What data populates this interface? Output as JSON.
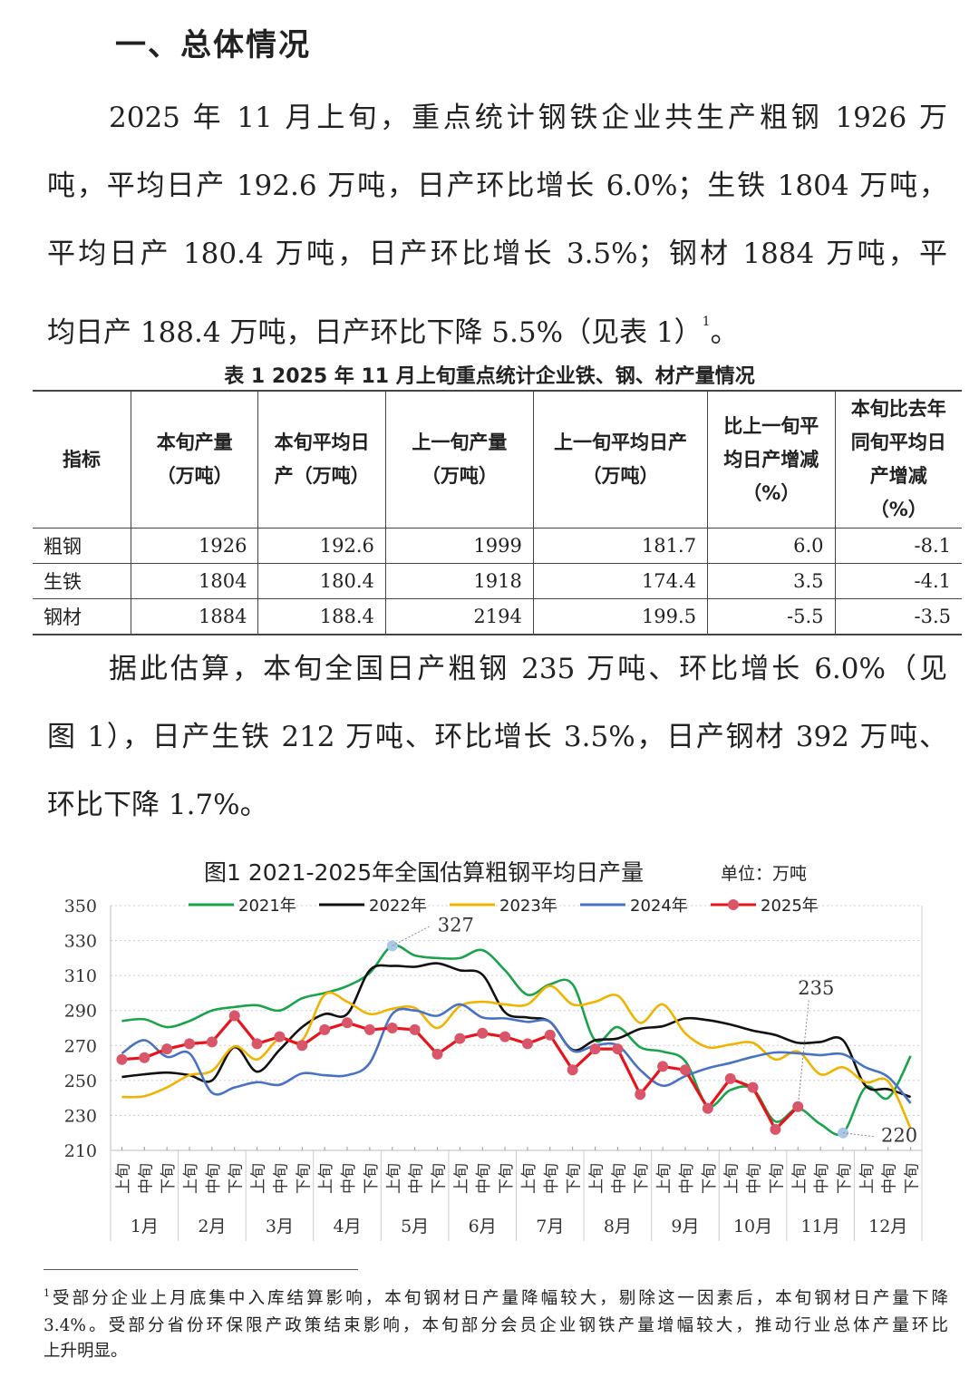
{
  "section_title": "一、总体情况",
  "paragraph1": {
    "lines": [
      "2025 年 11 月上旬，重点统计钢铁企业共生产粗钢 1926 万",
      "吨，平均日产 192.6 万吨，日产环比增长 6.0%；生铁 1804 万吨，",
      "平均日产 180.4 万吨，日产环比增长 3.5%；钢材 1884 万吨，平",
      "均日产 188.4 万吨，日产环比下降 5.5%（见表 1）"
    ],
    "footnote_ref": "1",
    "end": "。"
  },
  "table": {
    "caption": "表 1   2025 年 11 月上旬重点统计企业铁、钢、材产量情况",
    "headers": [
      "指标",
      "本旬产量（万吨）",
      "本旬平均日产（万吨）",
      "上一旬产量（万吨）",
      "上一旬平均日产（万吨）",
      "比上一旬平均日产增减（%）",
      "本旬比去年同旬平均日产增减（%）"
    ],
    "rows": [
      [
        "粗钢",
        "1926",
        "192.6",
        "1999",
        "181.7",
        "6.0",
        "-8.1"
      ],
      [
        "生铁",
        "1804",
        "180.4",
        "1918",
        "174.4",
        "3.5",
        "-4.1"
      ],
      [
        "钢材",
        "1884",
        "188.4",
        "2194",
        "199.5",
        "-5.5",
        "-3.5"
      ]
    ]
  },
  "paragraph2": {
    "lines": [
      "据此估算，本旬全国日产粗钢 235 万吨、环比增长 6.0%（见",
      "图 1），日产生铁 212 万吨、环比增长 3.5%，日产钢材 392 万吨、",
      "环比下降 1.7%。"
    ]
  },
  "chart_data": {
    "type": "line",
    "title": "图1  2021-2025年全国估算粗钢平均日产量",
    "unit": "单位：万吨",
    "ylim": [
      210,
      350
    ],
    "yticks": [
      210,
      230,
      250,
      270,
      290,
      310,
      330,
      350
    ],
    "grid": true,
    "legend": "top",
    "months": [
      "1月",
      "2月",
      "3月",
      "4月",
      "5月",
      "6月",
      "7月",
      "8月",
      "9月",
      "10月",
      "11月",
      "12月"
    ],
    "dekads": [
      "上旬",
      "中旬",
      "下旬"
    ],
    "series": [
      {
        "name": "2021年",
        "color": "#1aa34a",
        "values": [
          284,
          285,
          280.5,
          284,
          290,
          292,
          293,
          290,
          297,
          300,
          304,
          311.5,
          327,
          321.5,
          320,
          320,
          324.5,
          313,
          299,
          305,
          305,
          273,
          280.5,
          269,
          266.5,
          261,
          235.5,
          244.5,
          245,
          226.5,
          234,
          225,
          220,
          246,
          240,
          264
        ]
      },
      {
        "name": "2022年",
        "color": "#111111",
        "values": [
          252,
          253.5,
          254.5,
          253,
          250,
          269,
          255,
          267.5,
          280.5,
          288,
          288,
          313,
          315.5,
          315,
          317,
          313,
          310.5,
          289,
          286,
          283.5,
          267.5,
          273,
          274,
          279.5,
          281,
          285.5,
          284.5,
          282,
          278.5,
          276,
          271.5,
          272,
          273,
          247,
          245,
          240.5
        ]
      },
      {
        "name": "2023年",
        "color": "#f0b400",
        "values": [
          240.5,
          241,
          246,
          253,
          255.5,
          269.5,
          262,
          274,
          273,
          299,
          295,
          288,
          291,
          291.5,
          280,
          292.5,
          295,
          293.5,
          293.5,
          304,
          293.5,
          295,
          298.5,
          283,
          293.5,
          277,
          269,
          270.5,
          271.5,
          262,
          266.5,
          253.5,
          257.5,
          249,
          249.5,
          222.5
        ]
      },
      {
        "name": "2024年",
        "color": "#4a72c4",
        "values": [
          265.5,
          273,
          263.5,
          265.5,
          243,
          246,
          249,
          247.5,
          254,
          253,
          253,
          260,
          288,
          290,
          287,
          293.5,
          286,
          285.5,
          283.5,
          283.5,
          267,
          270,
          270,
          256,
          247,
          252.5,
          257,
          260,
          263.5,
          266,
          265.5,
          264.5,
          265,
          257.5,
          252,
          237
        ]
      },
      {
        "name": "2025年",
        "color": "#e8141c",
        "marker": "#d9566a",
        "values": [
          262,
          263,
          268,
          271,
          272,
          287,
          271,
          275,
          270,
          279,
          283,
          279,
          280,
          279,
          265,
          274,
          277,
          275,
          271,
          276,
          256,
          268,
          268,
          242,
          258,
          256,
          234,
          251,
          246,
          222,
          235
        ]
      }
    ],
    "annotations": [
      {
        "series": "2021年",
        "index": 12,
        "label": "327"
      },
      {
        "series": "2021年",
        "index": 32,
        "label": "220"
      },
      {
        "series": "2025年",
        "index": 30,
        "label": "235"
      }
    ]
  },
  "footnote": {
    "mark": "1",
    "lines": [
      "受部分企业上月底集中入库结算影响，本旬钢材日产量降幅较大，剔除这一因素后，本旬钢材日产量下降",
      "3.4%。受部分省份环保限产政策结束影响，本旬部分会员企业钢铁产量增幅较大，推动行业总体产量环比",
      "上升明显。"
    ]
  }
}
